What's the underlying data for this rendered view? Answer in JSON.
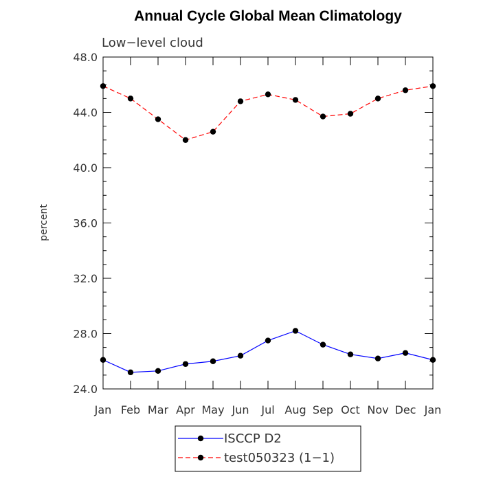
{
  "chart_data": {
    "type": "line",
    "title": "Annual Cycle Global Mean Climatology",
    "subtitle": "Low−level cloud",
    "ylabel": "percent",
    "xlabel": "",
    "ylim": [
      24.0,
      48.0
    ],
    "y_ticks": [
      "24.0",
      "28.0",
      "32.0",
      "36.0",
      "40.0",
      "44.0",
      "48.0"
    ],
    "categories": [
      "Jan",
      "Feb",
      "Mar",
      "Apr",
      "May",
      "Jun",
      "Jul",
      "Aug",
      "Sep",
      "Oct",
      "Nov",
      "Dec",
      "Jan"
    ],
    "series": [
      {
        "name": "ISCCP D2",
        "color": "#0000ff",
        "dash": "solid",
        "values": [
          26.1,
          25.2,
          25.3,
          25.8,
          26.0,
          26.4,
          27.5,
          28.2,
          27.2,
          26.5,
          26.2,
          26.6,
          26.1
        ]
      },
      {
        "name": "test050323 (1−1)",
        "color": "#ff0000",
        "dash": "dashed",
        "values": [
          45.9,
          45.0,
          43.5,
          42.0,
          42.6,
          44.8,
          45.3,
          44.9,
          43.7,
          43.9,
          45.0,
          45.6,
          45.9
        ]
      }
    ],
    "grid": false,
    "legend_position": "bottom-center"
  }
}
